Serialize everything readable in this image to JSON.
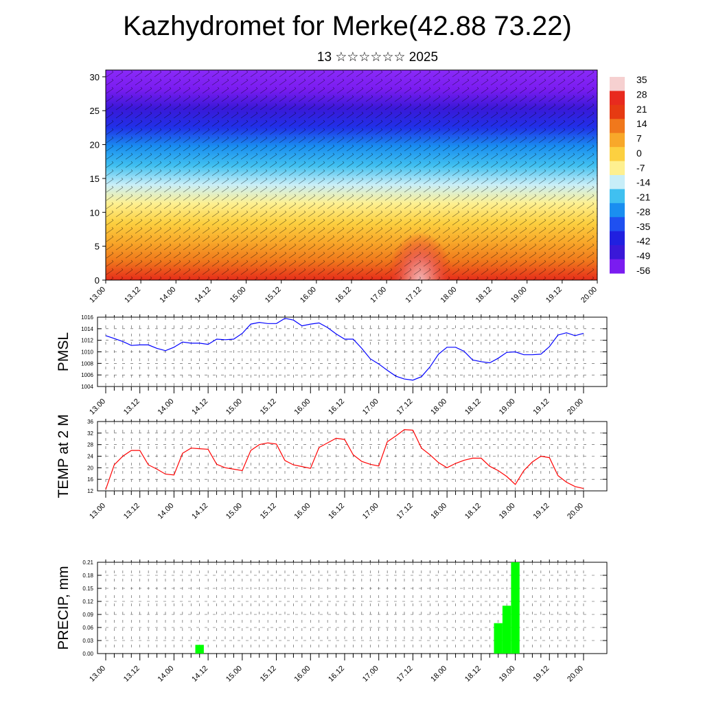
{
  "title": "Kazhydromet for Merke(42.88 73.22)",
  "subtitle": "13 ☆☆☆☆☆☆ 2025",
  "chart_data": [
    {
      "type": "heatmap",
      "title": "",
      "x_tick_labels": [
        "13.00",
        "13.12",
        "14.00",
        "14.12",
        "15.00",
        "15.12",
        "16.00",
        "16.12",
        "17.00",
        "17.12",
        "18.00",
        "18.12",
        "19.00",
        "19.12",
        "20.00"
      ],
      "ylim": [
        0,
        31
      ],
      "y_ticks": [
        0,
        5,
        10,
        15,
        20,
        25,
        30
      ],
      "colorbar_labels": [
        "35",
        "28",
        "21",
        "14",
        "7",
        "0",
        "-7",
        "-14",
        "-21",
        "-28",
        "-35",
        "-42",
        "-49",
        "-56"
      ],
      "colorbar_colors": [
        "#f6d0d0",
        "#e82a1e",
        "#e63a12",
        "#f0781c",
        "#f8a82a",
        "#fcd040",
        "#fef090",
        "#c8eef8",
        "#40c0f0",
        "#1a8ef0",
        "#1f50f0",
        "#2020e0",
        "#3a18d8",
        "#7a1cf0"
      ],
      "rows_colors": [
        "#e62c1a",
        "#f0781c",
        "#f8a82a",
        "#fcd040",
        "#fef090",
        "#c8eef8",
        "#40c0f0",
        "#1a8ef0",
        "#2030e8",
        "#3a18d8",
        "#7a1cf0",
        "#8a2af8"
      ],
      "rows_values": [
        28,
        14,
        7,
        0,
        -7,
        -14,
        -21,
        -28,
        -42,
        -49,
        -56,
        -56
      ],
      "grid": false
    },
    {
      "type": "line",
      "ylabel": "PMSL",
      "ylim": [
        1004,
        1016
      ],
      "y_ticks": [
        1004,
        1006,
        1008,
        1010,
        1012,
        1014,
        1016
      ],
      "x_tick_labels": [
        "13.00",
        "13.12",
        "14.00",
        "14.12",
        "15.00",
        "15.12",
        "16.00",
        "16.12",
        "17.00",
        "17.12",
        "18.00",
        "18.12",
        "19.00",
        "19.12",
        "20.00"
      ],
      "x": [
        0,
        3,
        6,
        9,
        12,
        15,
        18,
        21,
        24,
        27,
        30,
        33,
        36,
        39,
        42,
        45,
        48,
        51,
        54,
        57,
        60,
        63,
        66,
        69,
        72,
        75,
        78,
        81,
        84,
        87,
        90,
        93,
        96,
        99,
        102,
        105,
        108,
        111,
        114,
        117,
        120,
        123,
        126,
        129,
        132,
        135,
        138,
        141,
        144,
        147,
        150,
        153,
        156,
        159,
        162,
        165,
        168
      ],
      "series": [
        {
          "color": "#0000ff",
          "values": [
            1012.8,
            1012.3,
            1011.8,
            1011.1,
            1011.2,
            1011.2,
            1010.6,
            1010.2,
            1010.8,
            1011.7,
            1011.5,
            1011.5,
            1011.3,
            1012.2,
            1012.1,
            1012.2,
            1013.2,
            1014.8,
            1015.1,
            1014.9,
            1014.9,
            1015.8,
            1015.5,
            1014.5,
            1014.8,
            1015.0,
            1014.2,
            1013.1,
            1012.2,
            1012.2,
            1010.6,
            1008.8,
            1007.9,
            1006.8,
            1005.8,
            1005.3,
            1005.1,
            1005.7,
            1007.4,
            1009.6,
            1010.8,
            1010.8,
            1010.1,
            1008.6,
            1008.3,
            1008.1,
            1008.9,
            1009.9,
            1010.0,
            1009.5,
            1009.5,
            1009.6,
            1010.9,
            1012.9,
            1013.3,
            1012.8,
            1013.2
          ]
        }
      ],
      "grid": true
    },
    {
      "type": "line",
      "ylabel": "TEMP at 2 M",
      "ylim": [
        12,
        36
      ],
      "y_ticks": [
        12,
        16,
        20,
        24,
        28,
        32,
        36
      ],
      "x_tick_labels": [
        "13.00",
        "13.12",
        "14.00",
        "14.12",
        "15.00",
        "15.12",
        "16.00",
        "16.12",
        "17.00",
        "17.12",
        "18.00",
        "18.12",
        "19.00",
        "19.12",
        "20.00"
      ],
      "x": [
        0,
        3,
        6,
        9,
        12,
        15,
        18,
        21,
        24,
        27,
        30,
        33,
        36,
        39,
        42,
        45,
        48,
        51,
        54,
        57,
        60,
        63,
        66,
        69,
        72,
        75,
        78,
        81,
        84,
        87,
        90,
        93,
        96,
        99,
        102,
        105,
        108,
        111,
        114,
        117,
        120,
        123,
        126,
        129,
        132,
        135,
        138,
        141,
        144,
        147,
        150,
        153,
        156,
        159,
        162,
        165,
        168
      ],
      "series": [
        {
          "color": "#ff0000",
          "values": [
            12.5,
            21.0,
            24.0,
            26.0,
            26.0,
            21.0,
            19.5,
            17.8,
            17.5,
            25.0,
            26.8,
            26.6,
            26.4,
            21.2,
            20.0,
            19.5,
            19.0,
            26.0,
            28.0,
            28.6,
            28.2,
            22.5,
            21.0,
            20.4,
            19.8,
            27.0,
            28.6,
            30.2,
            29.8,
            24.5,
            22.2,
            21.2,
            20.6,
            29.0,
            31.0,
            33.2,
            33.0,
            26.8,
            24.5,
            21.8,
            20.0,
            21.5,
            22.6,
            23.3,
            23.3,
            20.5,
            19.0,
            17.0,
            14.2,
            19.0,
            22.0,
            24.0,
            23.5,
            17.3,
            15.0,
            13.5,
            12.8
          ]
        }
      ],
      "grid": true
    },
    {
      "type": "bar",
      "ylabel": "PRECIP, mm",
      "ylim": [
        0,
        0.21
      ],
      "y_tick_labels": [
        "0.00",
        "0.03",
        "0.06",
        "0.09",
        "0.12",
        "0.15",
        "0.18",
        "0.21"
      ],
      "x_tick_labels": [
        "13.00",
        "13.12",
        "14.00",
        "14.12",
        "15.00",
        "15.12",
        "16.00",
        "16.12",
        "17.00",
        "17.12",
        "18.00",
        "18.12",
        "19.00",
        "19.12",
        "20.00"
      ],
      "bars": [
        {
          "x": 33,
          "value": 0.02
        },
        {
          "x": 138,
          "value": 0.07
        },
        {
          "x": 141,
          "value": 0.11
        },
        {
          "x": 144,
          "value": 0.21
        }
      ],
      "bar_color": "#00ff00",
      "grid": true
    }
  ]
}
